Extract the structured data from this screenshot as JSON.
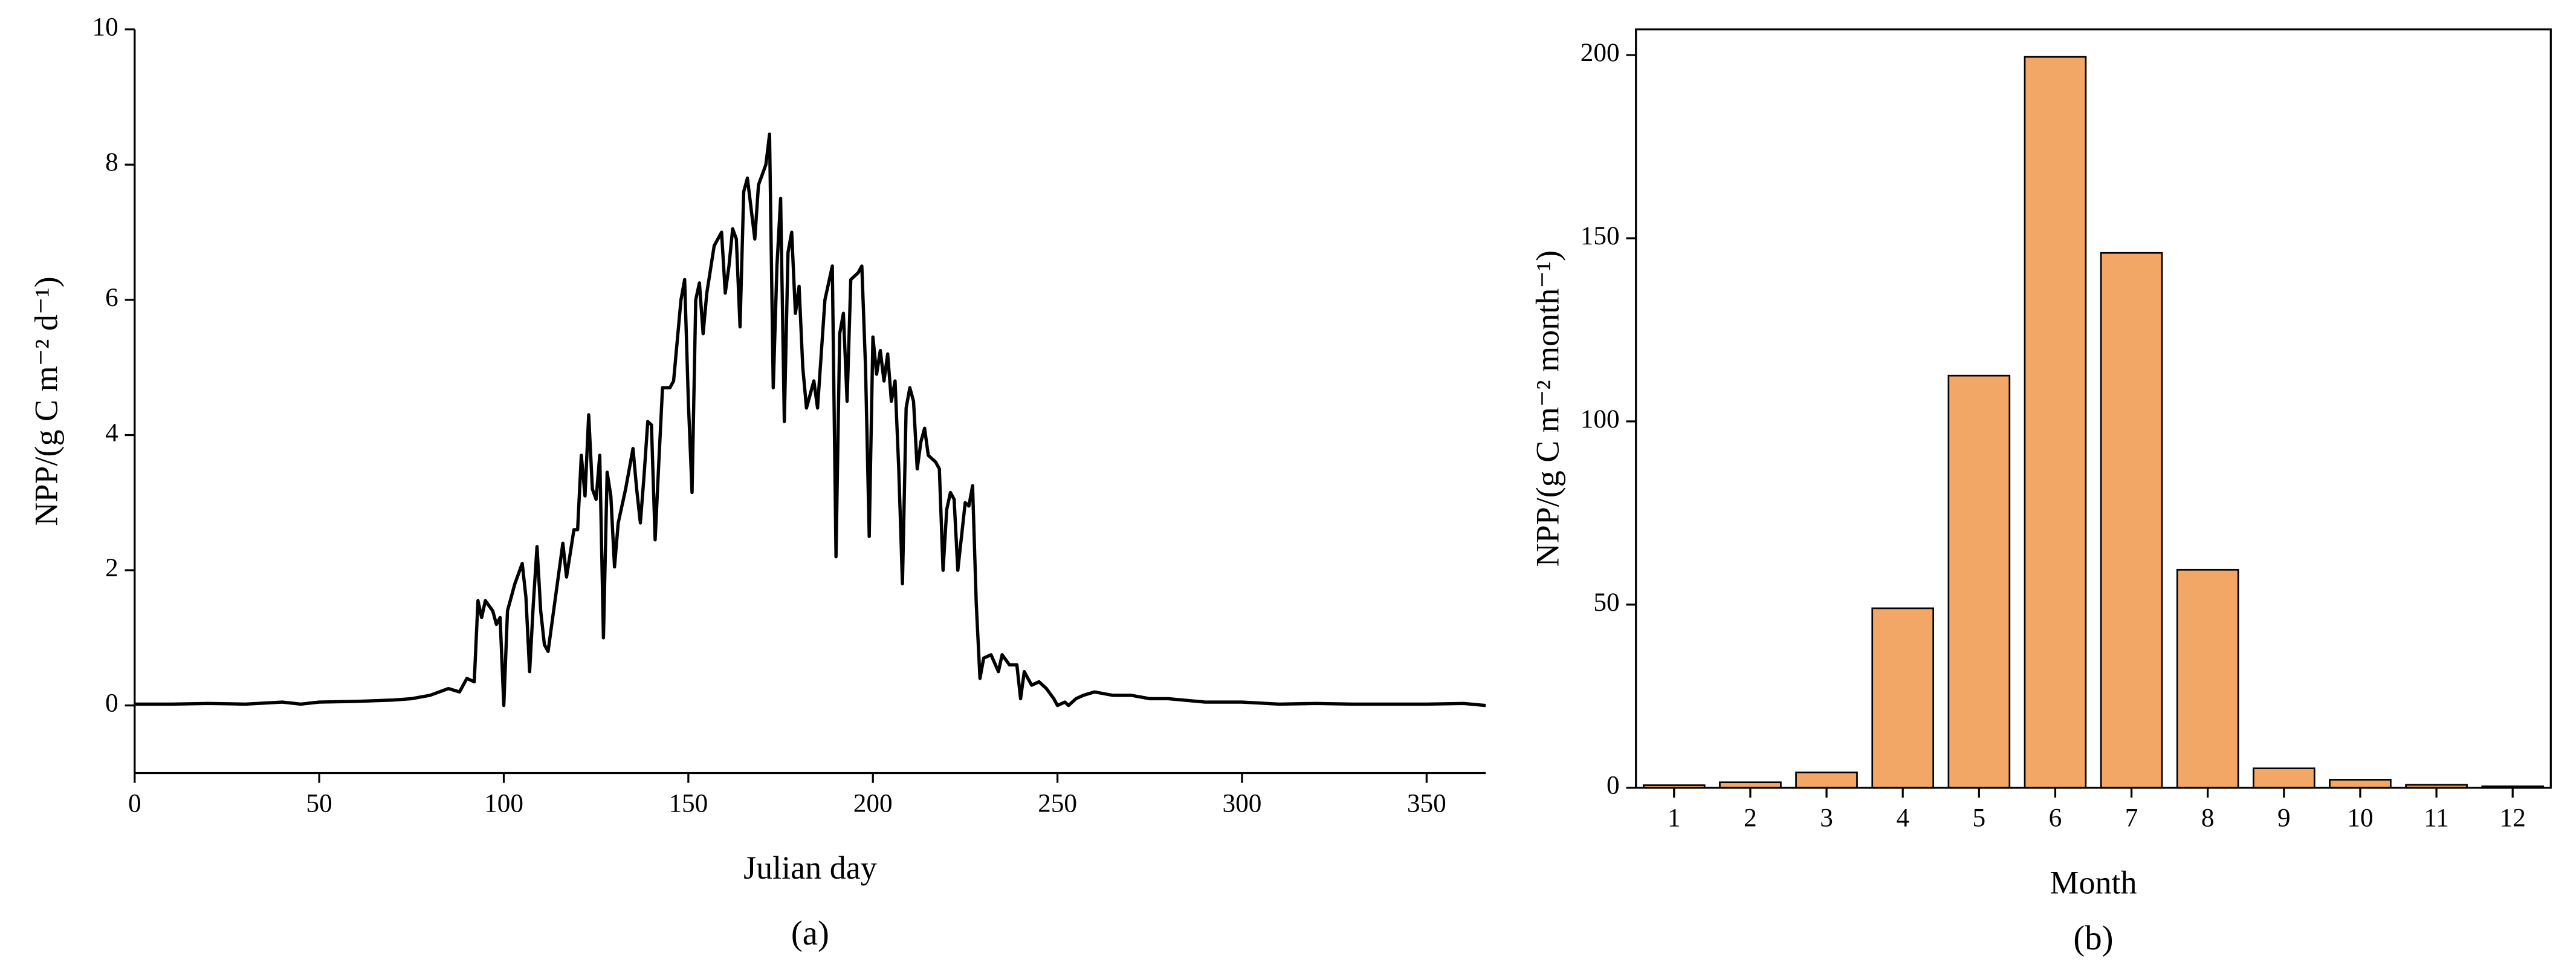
{
  "chart_data": [
    {
      "type": "line",
      "caption": "(a)",
      "x_label": "Julian day",
      "y_label": "NPP/(g C m⁻² d⁻¹)",
      "color": "#000000",
      "xlim": [
        0,
        366
      ],
      "xticks": [
        0,
        50,
        100,
        150,
        200,
        250,
        300,
        350
      ],
      "ylim": [
        -1,
        10
      ],
      "yticks": [
        0,
        2,
        4,
        6,
        8,
        10
      ],
      "x": [
        0,
        10,
        20,
        30,
        40,
        45,
        50,
        60,
        70,
        75,
        80,
        85,
        88,
        90,
        92,
        93,
        94,
        95,
        97,
        98,
        99,
        100,
        101,
        103,
        105,
        106,
        107,
        108,
        109,
        110,
        111,
        112,
        114,
        116,
        117,
        119,
        120,
        121,
        122,
        123,
        124,
        125,
        126,
        127,
        128,
        129,
        130,
        131,
        133,
        135,
        136,
        137,
        138,
        139,
        140,
        141,
        142,
        143,
        145,
        146,
        148,
        149,
        150,
        151,
        152,
        153,
        154,
        155,
        157,
        159,
        160,
        161,
        162,
        163,
        164,
        165,
        166,
        168,
        169,
        171,
        172,
        173,
        174,
        175,
        176,
        177,
        178,
        179,
        180,
        181,
        182,
        184,
        185,
        187,
        189,
        190,
        191,
        192,
        193,
        194,
        196,
        197,
        198,
        199,
        200,
        201,
        202,
        203,
        204,
        205,
        206,
        207,
        208,
        209,
        210,
        211,
        212,
        213,
        214,
        215,
        217,
        218,
        219,
        220,
        221,
        222,
        223,
        224,
        225,
        226,
        227,
        228,
        229,
        230,
        232,
        234,
        235,
        237,
        239,
        240,
        241,
        243,
        245,
        247,
        249,
        250,
        252,
        253,
        255,
        257,
        260,
        265,
        270,
        275,
        280,
        290,
        300,
        310,
        320,
        330,
        340,
        350,
        360,
        366
      ],
      "values": [
        0.02,
        0.02,
        0.03,
        0.02,
        0.05,
        0.02,
        0.05,
        0.06,
        0.08,
        0.1,
        0.15,
        0.25,
        0.2,
        0.4,
        0.35,
        1.55,
        1.3,
        1.55,
        1.4,
        1.2,
        1.3,
        0,
        1.4,
        1.8,
        2.1,
        1.6,
        0.5,
        1.5,
        2.35,
        1.4,
        0.9,
        0.8,
        1.6,
        2.4,
        1.9,
        2.6,
        2.6,
        3.7,
        3.1,
        4.3,
        3.2,
        3.05,
        3.7,
        1.0,
        3.45,
        3.1,
        2.05,
        2.7,
        3.2,
        3.8,
        3.2,
        2.7,
        3.4,
        4.2,
        4.15,
        2.45,
        3.6,
        4.7,
        4.7,
        4.8,
        6.0,
        6.3,
        4.5,
        3.15,
        6.0,
        6.25,
        5.5,
        6.1,
        6.8,
        7.0,
        6.1,
        6.5,
        7.05,
        6.9,
        5.6,
        7.6,
        7.8,
        6.9,
        7.7,
        8.0,
        8.45,
        4.7,
        6.5,
        7.5,
        4.2,
        6.7,
        7.0,
        5.8,
        6.2,
        5.0,
        4.4,
        4.8,
        4.4,
        6.0,
        6.5,
        2.2,
        5.5,
        5.8,
        4.5,
        6.3,
        6.4,
        6.5,
        5.0,
        2.5,
        5.45,
        4.9,
        5.25,
        4.8,
        5.2,
        4.5,
        4.8,
        3.5,
        1.8,
        4.4,
        4.7,
        4.5,
        3.5,
        3.9,
        4.1,
        3.7,
        3.6,
        3.5,
        2.0,
        2.9,
        3.15,
        3.05,
        2.0,
        2.5,
        3.0,
        2.95,
        3.25,
        1.5,
        0.4,
        0.7,
        0.75,
        0.5,
        0.75,
        0.6,
        0.6,
        0.1,
        0.5,
        0.3,
        0.35,
        0.25,
        0.1,
        0.0,
        0.05,
        0.0,
        0.1,
        0.15,
        0.2,
        0.15,
        0.15,
        0.1,
        0.1,
        0.05,
        0.05,
        0.02,
        0.03,
        0.02,
        0.02,
        0.02,
        0.03,
        0.0
      ]
    },
    {
      "type": "bar",
      "caption": "(b)",
      "x_label": "Month",
      "y_label": "NPP/(g C m⁻² month⁻¹)",
      "color": "#f3a766",
      "categories": [
        "1",
        "2",
        "3",
        "4",
        "5",
        "6",
        "7",
        "8",
        "9",
        "10",
        "11",
        "12"
      ],
      "values": [
        0.7,
        1.5,
        4.2,
        49,
        112.5,
        199.5,
        146,
        59.5,
        5.3,
        2.2,
        0.8,
        0.4
      ],
      "ylim": [
        0,
        207
      ],
      "yticks": [
        0,
        50,
        100,
        150,
        200
      ]
    }
  ]
}
